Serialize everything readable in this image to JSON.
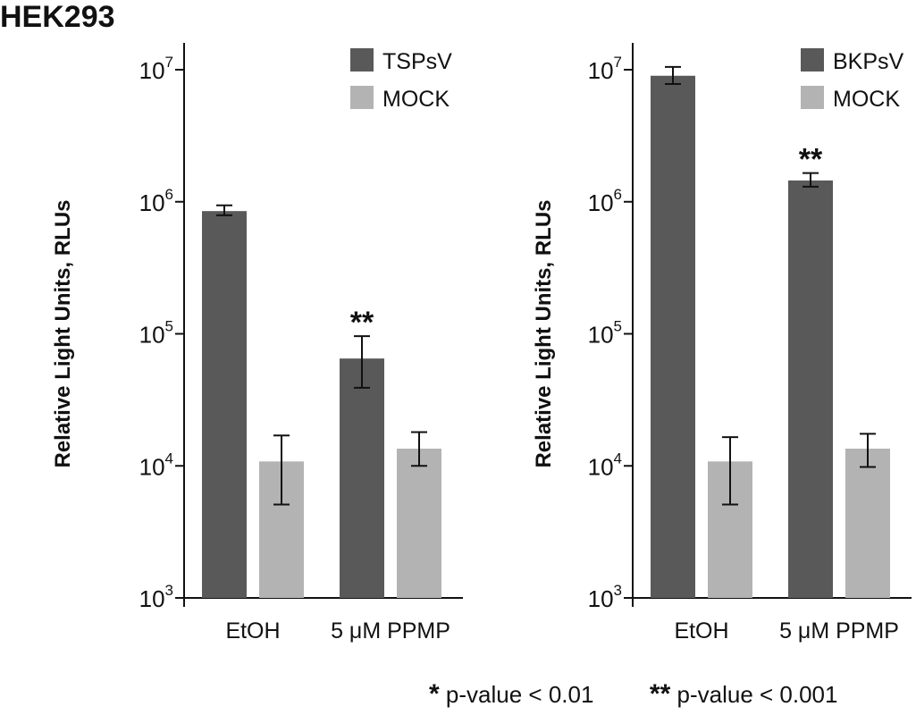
{
  "figure_title": "HEK293",
  "colors": {
    "virus": "#595959",
    "mock": "#b3b3b3",
    "axis": "#111111"
  },
  "footnote": {
    "single_star": "*",
    "single_text": "p-value < 0.01",
    "double_star": "**",
    "double_text": "p-value < 0.001"
  },
  "chart_data": [
    {
      "type": "bar",
      "yscale": "log",
      "ylabel": "Relative Light Units, RLUs",
      "ylim": [
        1000,
        10000000
      ],
      "yticks": [
        {
          "base": "10",
          "exp": "3",
          "value": 1000
        },
        {
          "base": "10",
          "exp": "4",
          "value": 10000
        },
        {
          "base": "10",
          "exp": "5",
          "value": 100000
        },
        {
          "base": "10",
          "exp": "6",
          "value": 1000000
        },
        {
          "base": "10",
          "exp": "7",
          "value": 10000000
        }
      ],
      "categories": [
        "EtOH",
        "5 μM PPMP"
      ],
      "legend_position": "top-right",
      "series": [
        {
          "name": "TSPsV",
          "values": [
            850000,
            65000
          ],
          "err_low": [
            790000,
            39000
          ],
          "err_high": [
            940000,
            96000
          ],
          "significance": [
            "",
            "**"
          ]
        },
        {
          "name": "MOCK",
          "values": [
            10800,
            13500
          ],
          "err_low": [
            5100,
            10000
          ],
          "err_high": [
            17000,
            18000
          ],
          "significance": [
            "",
            ""
          ]
        }
      ]
    },
    {
      "type": "bar",
      "yscale": "log",
      "ylabel": "Relative Light Units, RLUs",
      "ylim": [
        1000,
        10000000
      ],
      "yticks": [
        {
          "base": "10",
          "exp": "3",
          "value": 1000
        },
        {
          "base": "10",
          "exp": "4",
          "value": 10000
        },
        {
          "base": "10",
          "exp": "5",
          "value": 100000
        },
        {
          "base": "10",
          "exp": "6",
          "value": 1000000
        },
        {
          "base": "10",
          "exp": "7",
          "value": 10000000
        }
      ],
      "categories": [
        "EtOH",
        "5 μM PPMP"
      ],
      "legend_position": "top-right",
      "series": [
        {
          "name": "BKPsV",
          "values": [
            9000000,
            1450000
          ],
          "err_low": [
            7800000,
            1300000
          ],
          "err_high": [
            10500000,
            1650000
          ],
          "significance": [
            "",
            "**"
          ]
        },
        {
          "name": "MOCK",
          "values": [
            10800,
            13500
          ],
          "err_low": [
            5100,
            9800
          ],
          "err_high": [
            16500,
            17500
          ],
          "significance": [
            "",
            ""
          ]
        }
      ]
    }
  ]
}
